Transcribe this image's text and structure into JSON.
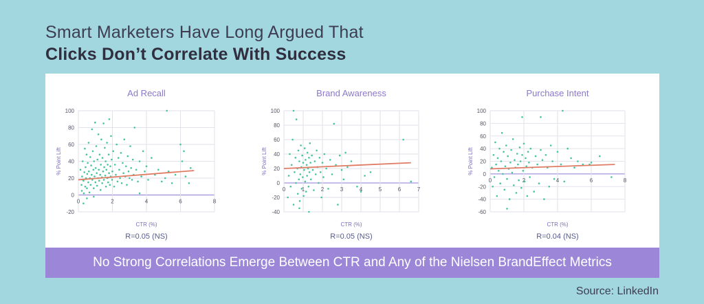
{
  "header": {
    "line1": "Smart Marketers Have Long Argued That",
    "line2": "Clicks Don’t Correlate With Success"
  },
  "banner": "No Strong Correlations Emerge Between CTR and Any of the Nielsen BrandEffect Metrics",
  "source": "Source: LinkedIn",
  "colors": {
    "background": "#a3d7e0",
    "banner": "#9b86d8",
    "points": "#45c49a",
    "trend": "#e07b64",
    "title_text": "#8a78c9"
  },
  "chart_data": [
    {
      "type": "scatter",
      "title": "Ad Recall",
      "xlabel": "CTR (%)",
      "ylabel": "% Point Lift",
      "stat": "R=0.05 (NS)",
      "xlim": [
        0,
        8
      ],
      "ylim": [
        -20,
        100
      ],
      "xticks": [
        0,
        2,
        4,
        6,
        8
      ],
      "yticks": [
        -20,
        0,
        20,
        40,
        60,
        80,
        100
      ],
      "trend": [
        [
          0,
          18
        ],
        [
          6.8,
          29
        ]
      ],
      "points": [
        [
          0.12,
          30
        ],
        [
          0.18,
          12
        ],
        [
          0.2,
          5
        ],
        [
          0.22,
          22
        ],
        [
          0.25,
          40
        ],
        [
          0.3,
          17
        ],
        [
          0.32,
          2
        ],
        [
          0.35,
          27
        ],
        [
          0.38,
          55
        ],
        [
          0.4,
          10
        ],
        [
          0.42,
          33
        ],
        [
          0.45,
          20
        ],
        [
          0.48,
          48
        ],
        [
          0.5,
          8
        ],
        [
          0.52,
          25
        ],
        [
          0.55,
          38
        ],
        [
          0.58,
          15
        ],
        [
          0.6,
          62
        ],
        [
          0.62,
          28
        ],
        [
          0.65,
          3
        ],
        [
          0.68,
          20
        ],
        [
          0.7,
          45
        ],
        [
          0.72,
          12
        ],
        [
          0.75,
          35
        ],
        [
          0.78,
          24
        ],
        [
          0.8,
          78
        ],
        [
          0.82,
          18
        ],
        [
          0.85,
          52
        ],
        [
          0.88,
          30
        ],
        [
          0.9,
          8
        ],
        [
          0.92,
          40
        ],
        [
          0.95,
          22
        ],
        [
          0.98,
          86
        ],
        [
          1.0,
          15
        ],
        [
          1.02,
          32
        ],
        [
          1.05,
          58
        ],
        [
          1.08,
          26
        ],
        [
          1.1,
          11
        ],
        [
          1.12,
          42
        ],
        [
          1.15,
          20
        ],
        [
          1.18,
          72
        ],
        [
          1.2,
          30
        ],
        [
          1.22,
          17
        ],
        [
          1.25,
          48
        ],
        [
          1.28,
          24
        ],
        [
          1.3,
          6
        ],
        [
          1.32,
          36
        ],
        [
          1.35,
          66
        ],
        [
          1.38,
          21
        ],
        [
          1.4,
          14
        ],
        [
          1.42,
          44
        ],
        [
          1.45,
          28
        ],
        [
          1.48,
          85
        ],
        [
          1.5,
          18
        ],
        [
          1.52,
          33
        ],
        [
          1.55,
          56
        ],
        [
          1.58,
          23
        ],
        [
          1.6,
          40
        ],
        [
          1.62,
          10
        ],
        [
          1.65,
          30
        ],
        [
          1.68,
          62
        ],
        [
          1.7,
          20
        ],
        [
          1.72,
          36
        ],
        [
          1.75,
          15
        ],
        [
          1.78,
          48
        ],
        [
          1.8,
          26
        ],
        [
          1.82,
          90
        ],
        [
          1.85,
          12
        ],
        [
          1.88,
          34
        ],
        [
          1.9,
          22
        ],
        [
          1.92,
          70
        ],
        [
          1.95,
          42
        ],
        [
          1.98,
          18
        ],
        [
          2.0,
          28
        ],
        [
          2.05,
          52
        ],
        [
          2.1,
          10
        ],
        [
          2.15,
          36
        ],
        [
          2.2,
          24
        ],
        [
          2.25,
          60
        ],
        [
          2.3,
          16
        ],
        [
          2.35,
          44
        ],
        [
          2.4,
          30
        ],
        [
          2.45,
          20
        ],
        [
          2.5,
          50
        ],
        [
          2.55,
          14
        ],
        [
          2.6,
          38
        ],
        [
          2.65,
          26
        ],
        [
          2.7,
          66
        ],
        [
          2.75,
          22
        ],
        [
          2.8,
          34
        ],
        [
          2.85,
          12
        ],
        [
          2.9,
          46
        ],
        [
          2.95,
          28
        ],
        [
          3.0,
          20
        ],
        [
          3.05,
          58
        ],
        [
          3.1,
          32
        ],
        [
          3.15,
          18
        ],
        [
          3.2,
          42
        ],
        [
          3.25,
          24
        ],
        [
          3.3,
          80
        ],
        [
          3.4,
          30
        ],
        [
          3.5,
          16
        ],
        [
          3.6,
          40
        ],
        [
          3.7,
          22
        ],
        [
          3.8,
          52
        ],
        [
          3.9,
          28
        ],
        [
          4.0,
          34
        ],
        [
          4.1,
          18
        ],
        [
          4.3,
          44
        ],
        [
          4.5,
          24
        ],
        [
          4.7,
          30
        ],
        [
          4.9,
          16
        ],
        [
          5.1,
          20
        ],
        [
          5.3,
          28
        ],
        [
          5.5,
          14
        ],
        [
          5.7,
          24
        ],
        [
          6.0,
          60
        ],
        [
          6.1,
          40
        ],
        [
          6.2,
          52
        ],
        [
          6.3,
          22
        ],
        [
          6.5,
          14
        ],
        [
          5.2,
          100
        ],
        [
          3.6,
          2
        ],
        [
          0.5,
          -4
        ],
        [
          0.9,
          -2
        ],
        [
          6.6,
          32
        ],
        [
          0.3,
          -10
        ]
      ]
    },
    {
      "type": "scatter",
      "title": "Brand Awareness",
      "xlabel": "CTR (%)",
      "ylabel": "% Point Lift",
      "stat": "R=0.05 (NS)",
      "xlim": [
        0,
        7
      ],
      "ylim": [
        -40,
        100
      ],
      "xticks": [
        0,
        1,
        2,
        3,
        4,
        5,
        6,
        7
      ],
      "yticks": [
        -40,
        -20,
        0,
        20,
        40,
        60,
        80,
        100
      ],
      "trend": [
        [
          0,
          20
        ],
        [
          6.6,
          28
        ]
      ],
      "points": [
        [
          0.2,
          -20
        ],
        [
          0.25,
          10
        ],
        [
          0.3,
          40
        ],
        [
          0.35,
          -5
        ],
        [
          0.4,
          25
        ],
        [
          0.45,
          60
        ],
        [
          0.5,
          -30
        ],
        [
          0.55,
          15
        ],
        [
          0.6,
          35
        ],
        [
          0.62,
          0
        ],
        [
          0.65,
          88
        ],
        [
          0.7,
          20
        ],
        [
          0.72,
          -15
        ],
        [
          0.75,
          45
        ],
        [
          0.78,
          5
        ],
        [
          0.8,
          30
        ],
        [
          0.82,
          -25
        ],
        [
          0.85,
          12
        ],
        [
          0.88,
          52
        ],
        [
          0.9,
          22
        ],
        [
          0.92,
          -8
        ],
        [
          0.95,
          38
        ],
        [
          0.98,
          8
        ],
        [
          1.0,
          28
        ],
        [
          1.02,
          -18
        ],
        [
          1.05,
          18
        ],
        [
          1.08,
          48
        ],
        [
          1.1,
          2
        ],
        [
          1.12,
          32
        ],
        [
          1.15,
          -12
        ],
        [
          1.18,
          25
        ],
        [
          1.2,
          10
        ],
        [
          1.22,
          42
        ],
        [
          1.25,
          20
        ],
        [
          1.28,
          -5
        ],
        [
          1.3,
          35
        ],
        [
          1.32,
          15
        ],
        [
          1.35,
          55
        ],
        [
          1.38,
          28
        ],
        [
          1.4,
          5
        ],
        [
          1.45,
          38
        ],
        [
          1.5,
          18
        ],
        [
          1.55,
          -10
        ],
        [
          1.6,
          30
        ],
        [
          1.65,
          12
        ],
        [
          1.7,
          45
        ],
        [
          1.75,
          22
        ],
        [
          1.8,
          0
        ],
        [
          1.85,
          35
        ],
        [
          1.9,
          15
        ],
        [
          1.95,
          -20
        ],
        [
          2.0,
          28
        ],
        [
          2.05,
          8
        ],
        [
          2.1,
          40
        ],
        [
          2.2,
          20
        ],
        [
          2.3,
          -8
        ],
        [
          2.4,
          32
        ],
        [
          2.5,
          12
        ],
        [
          2.6,
          82
        ],
        [
          2.7,
          25
        ],
        [
          2.8,
          -30
        ],
        [
          2.9,
          38
        ],
        [
          3.0,
          18
        ],
        [
          3.1,
          5
        ],
        [
          3.2,
          42
        ],
        [
          3.3,
          22
        ],
        [
          3.5,
          30
        ],
        [
          3.8,
          -5
        ],
        [
          4.0,
          -12
        ],
        [
          4.2,
          10
        ],
        [
          4.5,
          15
        ],
        [
          6.2,
          60
        ],
        [
          6.6,
          2
        ],
        [
          0.8,
          -35
        ],
        [
          0.5,
          100
        ],
        [
          1.3,
          -40
        ]
      ]
    },
    {
      "type": "scatter",
      "title": "Purchase Intent",
      "xlabel": "CTR (%)",
      "ylabel": "% Point Lift",
      "stat": "R=0.04 (NS)",
      "xlim": [
        0,
        8
      ],
      "ylim": [
        -60,
        100
      ],
      "xticks": [
        0,
        2,
        4,
        6,
        8
      ],
      "yticks": [
        -60,
        -40,
        -20,
        0,
        20,
        40,
        60,
        80,
        100
      ],
      "trend": [
        [
          0,
          8
        ],
        [
          7.4,
          15
        ]
      ],
      "points": [
        [
          0.1,
          10
        ],
        [
          0.15,
          -20
        ],
        [
          0.2,
          30
        ],
        [
          0.25,
          -5
        ],
        [
          0.3,
          50
        ],
        [
          0.35,
          15
        ],
        [
          0.4,
          -35
        ],
        [
          0.45,
          25
        ],
        [
          0.5,
          5
        ],
        [
          0.55,
          40
        ],
        [
          0.6,
          -15
        ],
        [
          0.65,
          20
        ],
        [
          0.7,
          65
        ],
        [
          0.75,
          0
        ],
        [
          0.8,
          35
        ],
        [
          0.85,
          -25
        ],
        [
          0.9,
          12
        ],
        [
          0.95,
          45
        ],
        [
          1.0,
          -8
        ],
        [
          1.05,
          28
        ],
        [
          1.1,
          8
        ],
        [
          1.15,
          -40
        ],
        [
          1.2,
          18
        ],
        [
          1.25,
          38
        ],
        [
          1.3,
          2
        ],
        [
          1.35,
          55
        ],
        [
          1.4,
          -18
        ],
        [
          1.45,
          22
        ],
        [
          1.5,
          10
        ],
        [
          1.55,
          -30
        ],
        [
          1.6,
          32
        ],
        [
          1.65,
          15
        ],
        [
          1.7,
          -10
        ],
        [
          1.75,
          42
        ],
        [
          1.8,
          20
        ],
        [
          1.85,
          -22
        ],
        [
          1.9,
          30
        ],
        [
          1.95,
          5
        ],
        [
          2.0,
          48
        ],
        [
          2.05,
          -12
        ],
        [
          2.1,
          25
        ],
        [
          2.15,
          12
        ],
        [
          2.2,
          -35
        ],
        [
          2.25,
          35
        ],
        [
          2.3,
          18
        ],
        [
          2.35,
          -5
        ],
        [
          2.4,
          40
        ],
        [
          2.5,
          10
        ],
        [
          2.6,
          -28
        ],
        [
          2.7,
          28
        ],
        [
          2.8,
          15
        ],
        [
          2.9,
          -15
        ],
        [
          3.0,
          38
        ],
        [
          3.1,
          22
        ],
        [
          3.2,
          -40
        ],
        [
          3.3,
          30
        ],
        [
          3.4,
          10
        ],
        [
          3.5,
          -20
        ],
        [
          3.6,
          45
        ],
        [
          3.7,
          20
        ],
        [
          3.8,
          -8
        ],
        [
          4.0,
          35
        ],
        [
          4.2,
          15
        ],
        [
          4.4,
          -12
        ],
        [
          4.6,
          40
        ],
        [
          4.8,
          25
        ],
        [
          5.0,
          10
        ],
        [
          5.2,
          20
        ],
        [
          5.5,
          15
        ],
        [
          6.0,
          18
        ],
        [
          6.5,
          28
        ],
        [
          7.2,
          -5
        ],
        [
          4.3,
          100
        ],
        [
          1.9,
          90
        ],
        [
          3.0,
          90
        ],
        [
          1.0,
          -55
        ],
        [
          5.9,
          15
        ]
      ]
    }
  ]
}
